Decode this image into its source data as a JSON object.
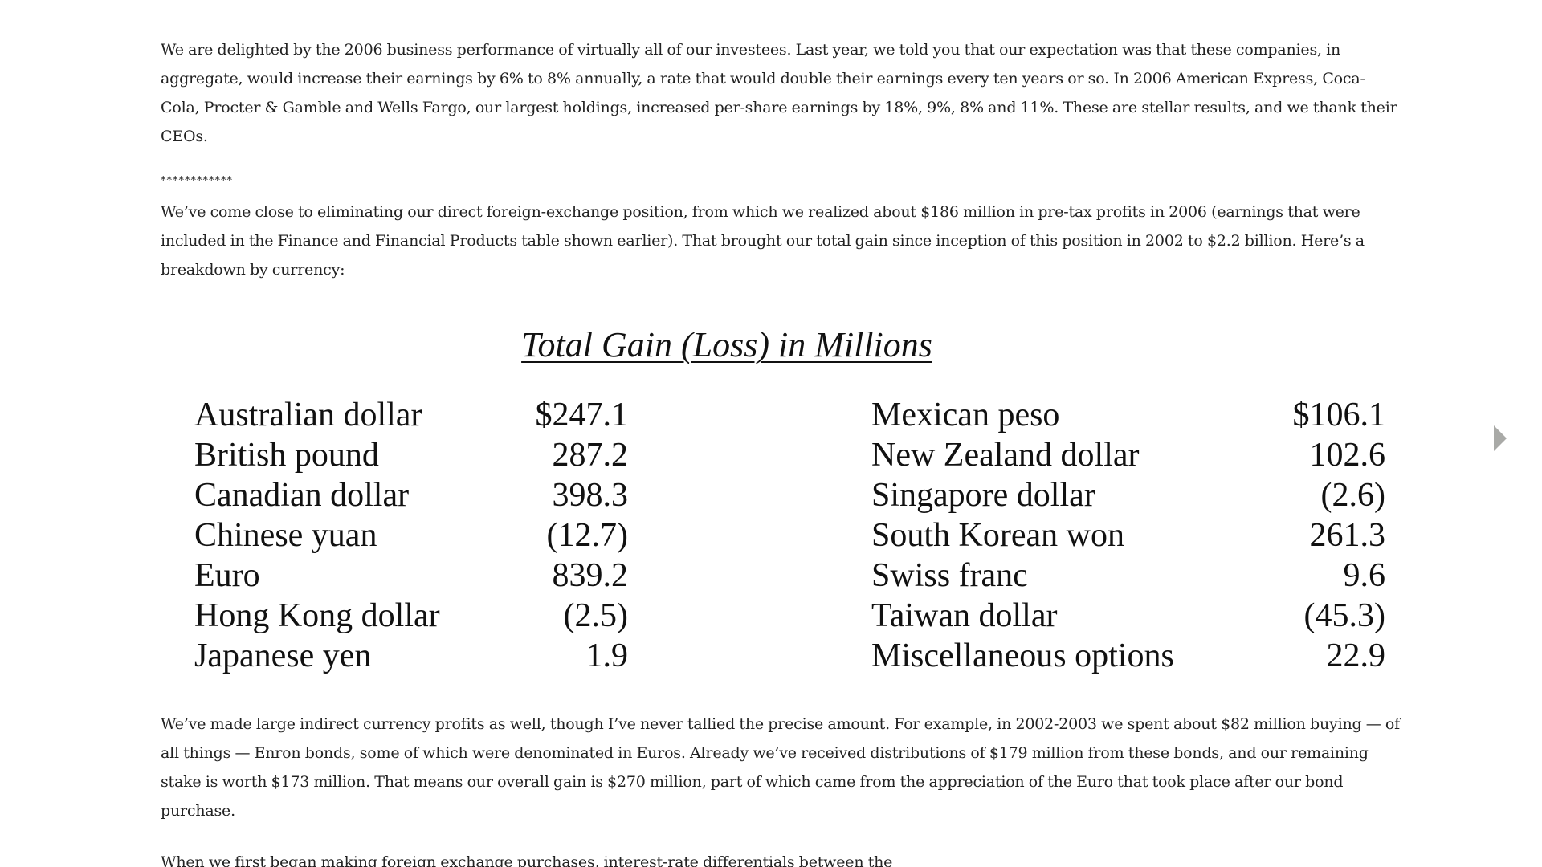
{
  "paragraphs": {
    "p1": "We are delighted by the 2006 business performance of virtually all of our investees. Last year, we told you that our expectation was that these companies, in aggregate, would increase their earnings by 6% to 8% annually, a rate that would double their earnings every ten years or so. In 2006 American Express, Coca-Cola, Procter & Gamble and Wells Fargo, our largest holdings, increased per-share earnings by 18%, 9%, 8% and 11%. These are stellar results, and we thank their CEOs.",
    "stars": "************",
    "p2": "We’ve come close to eliminating our direct foreign-exchange position, from which we realized about $186 million in pre-tax profits in 2006 (earnings that were included in the Finance and Financial Products table shown earlier). That brought our total gain since inception of this position in 2002 to $2.2 billion. Here’s a breakdown by currency:",
    "p3": "We’ve made large indirect currency profits as well, though I’ve never tallied the precise amount. For example, in 2002-2003 we spent about $82 million buying — of all things — Enron bonds, some of which were denominated in Euros. Already we’ve received distributions of $179 million from these bonds, and our remaining stake is worth $173 million. That means our overall gain is $270 million, part of which came from the appreciation of the Euro that took place after our bond purchase.",
    "p4": "When we first began making foreign exchange purchases, interest-rate differentials between the"
  },
  "table": {
    "title": "Total Gain (Loss) in Millions",
    "left": [
      {
        "name": "Australian dollar",
        "value": "$247.1"
      },
      {
        "name": "British pound",
        "value": "287.2"
      },
      {
        "name": "Canadian dollar",
        "value": "398.3"
      },
      {
        "name": "Chinese yuan",
        "value": "(12.7)"
      },
      {
        "name": "Euro",
        "value": "839.2"
      },
      {
        "name": "Hong Kong dollar",
        "value": "(2.5)"
      },
      {
        "name": "Japanese yen",
        "value": "1.9"
      }
    ],
    "right": [
      {
        "name": "Mexican peso",
        "value": "$106.1"
      },
      {
        "name": "New Zealand dollar",
        "value": "102.6"
      },
      {
        "name": "Singapore dollar",
        "value": "(2.6)"
      },
      {
        "name": "South Korean won",
        "value": "261.3"
      },
      {
        "name": "Swiss franc",
        "value": "9.6"
      },
      {
        "name": "Taiwan dollar",
        "value": "(45.3)"
      },
      {
        "name": "Miscellaneous options",
        "value": "22.9"
      }
    ]
  },
  "nav": {
    "next_icon": "triangle-right-icon",
    "color": "#a9aaa7"
  }
}
